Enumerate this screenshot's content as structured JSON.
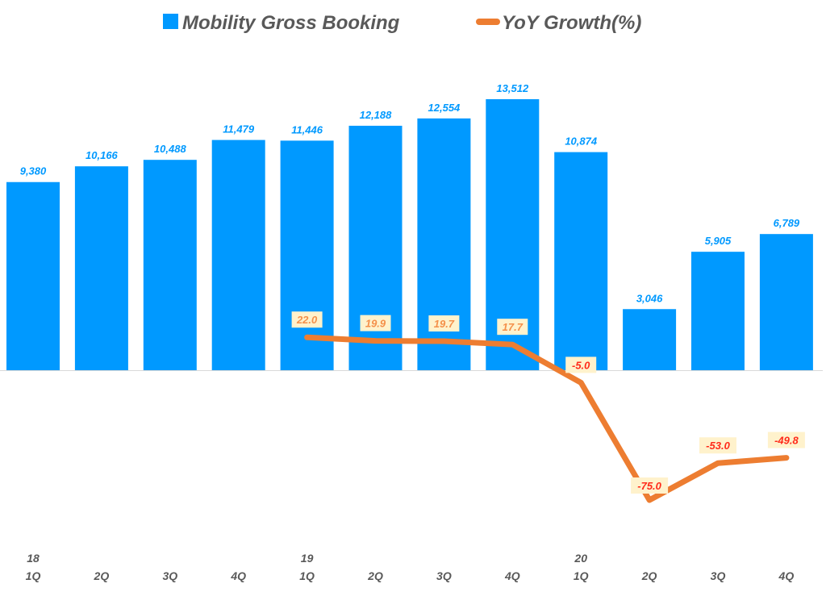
{
  "chart_data": {
    "type": "bar+line",
    "categories": [
      {
        "year": "18",
        "quarter": "1Q"
      },
      {
        "year": "",
        "quarter": "2Q"
      },
      {
        "year": "",
        "quarter": "3Q"
      },
      {
        "year": "",
        "quarter": "4Q"
      },
      {
        "year": "19",
        "quarter": "1Q"
      },
      {
        "year": "",
        "quarter": "2Q"
      },
      {
        "year": "",
        "quarter": "3Q"
      },
      {
        "year": "",
        "quarter": "4Q"
      },
      {
        "year": "20",
        "quarter": "1Q"
      },
      {
        "year": "",
        "quarter": "2Q"
      },
      {
        "year": "",
        "quarter": "3Q"
      },
      {
        "year": "",
        "quarter": "4Q"
      }
    ],
    "series": [
      {
        "name": "Mobility Gross Booking",
        "type": "bar",
        "color": "#0099ff",
        "values": [
          9380,
          10166,
          10488,
          11479,
          11446,
          12188,
          12554,
          13512,
          10874,
          3046,
          5905,
          6789
        ],
        "labels": [
          "9,380",
          "10,166",
          "10,488",
          "11,479",
          "11,446",
          "12,188",
          "12,554",
          "13,512",
          "10,874",
          "3,046",
          "5,905",
          "6,789"
        ]
      },
      {
        "name": "YoY Growth(%)",
        "type": "line",
        "color": "#ed7d31",
        "axis": "secondary",
        "values": [
          null,
          null,
          null,
          null,
          22.0,
          19.9,
          19.7,
          17.7,
          -5.0,
          -75.0,
          -53.0,
          -49.8
        ],
        "labels": [
          "",
          "",
          "",
          "",
          "22.0",
          "19.9",
          "19.7",
          "17.7",
          "-5.0",
          "-75.0",
          "-53.0",
          "-49.8"
        ]
      }
    ],
    "legend": "top",
    "grid": false,
    "label_colors": {
      "positive": "#f4904a",
      "negative": "#ff2a1a",
      "label_bg": "#fff2cc",
      "bar_label": "#0099ff"
    }
  }
}
